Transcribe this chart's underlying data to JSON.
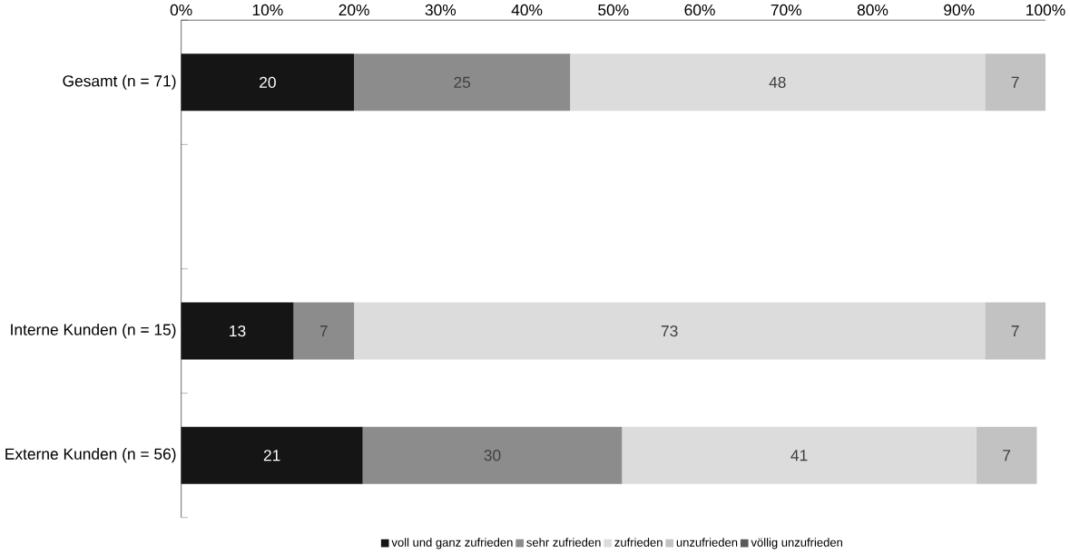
{
  "chart_data": {
    "type": "bar",
    "orientation": "horizontal",
    "stacked": true,
    "categories": [
      "Gesamt (n = 71)",
      null,
      "Interne Kunden (n = 15)",
      "Externe Kunden (n = 56)"
    ],
    "series": [
      {
        "name": "voll und ganz zufrieden",
        "color": "#151515",
        "values": [
          20,
          null,
          13,
          21
        ],
        "value_labels": [
          "20",
          null,
          "13",
          "21"
        ]
      },
      {
        "name": "sehr zufrieden",
        "color": "#8c8c8c",
        "values": [
          25,
          null,
          7,
          30
        ],
        "value_labels": [
          "25",
          null,
          "7",
          "30"
        ]
      },
      {
        "name": "zufrieden",
        "color": "#dcdcdc",
        "values": [
          48,
          null,
          73,
          41
        ],
        "value_labels": [
          "48",
          null,
          "73",
          "41"
        ]
      },
      {
        "name": "unzufrieden",
        "color": "#c2c2c2",
        "values": [
          7,
          null,
          7,
          7
        ],
        "value_labels": [
          "7",
          null,
          "7",
          "7"
        ]
      },
      {
        "name": "völlig unzufrieden",
        "color": "#5a5a5a",
        "values": [
          0,
          null,
          0,
          0
        ],
        "value_labels": [
          null,
          null,
          null,
          null
        ]
      }
    ],
    "xlim": [
      0,
      100
    ],
    "xticks": [
      {
        "value": 0,
        "label": "0%"
      },
      {
        "value": 10,
        "label": "10%"
      },
      {
        "value": 20,
        "label": "20%"
      },
      {
        "value": 30,
        "label": "30%"
      },
      {
        "value": 40,
        "label": "40%"
      },
      {
        "value": 50,
        "label": "50%"
      },
      {
        "value": 60,
        "label": "60%"
      },
      {
        "value": 70,
        "label": "70%"
      },
      {
        "value": 80,
        "label": "80%"
      },
      {
        "value": 90,
        "label": "90%"
      },
      {
        "value": 100,
        "label": "100%"
      }
    ],
    "grid": false,
    "legend": "bottom"
  }
}
